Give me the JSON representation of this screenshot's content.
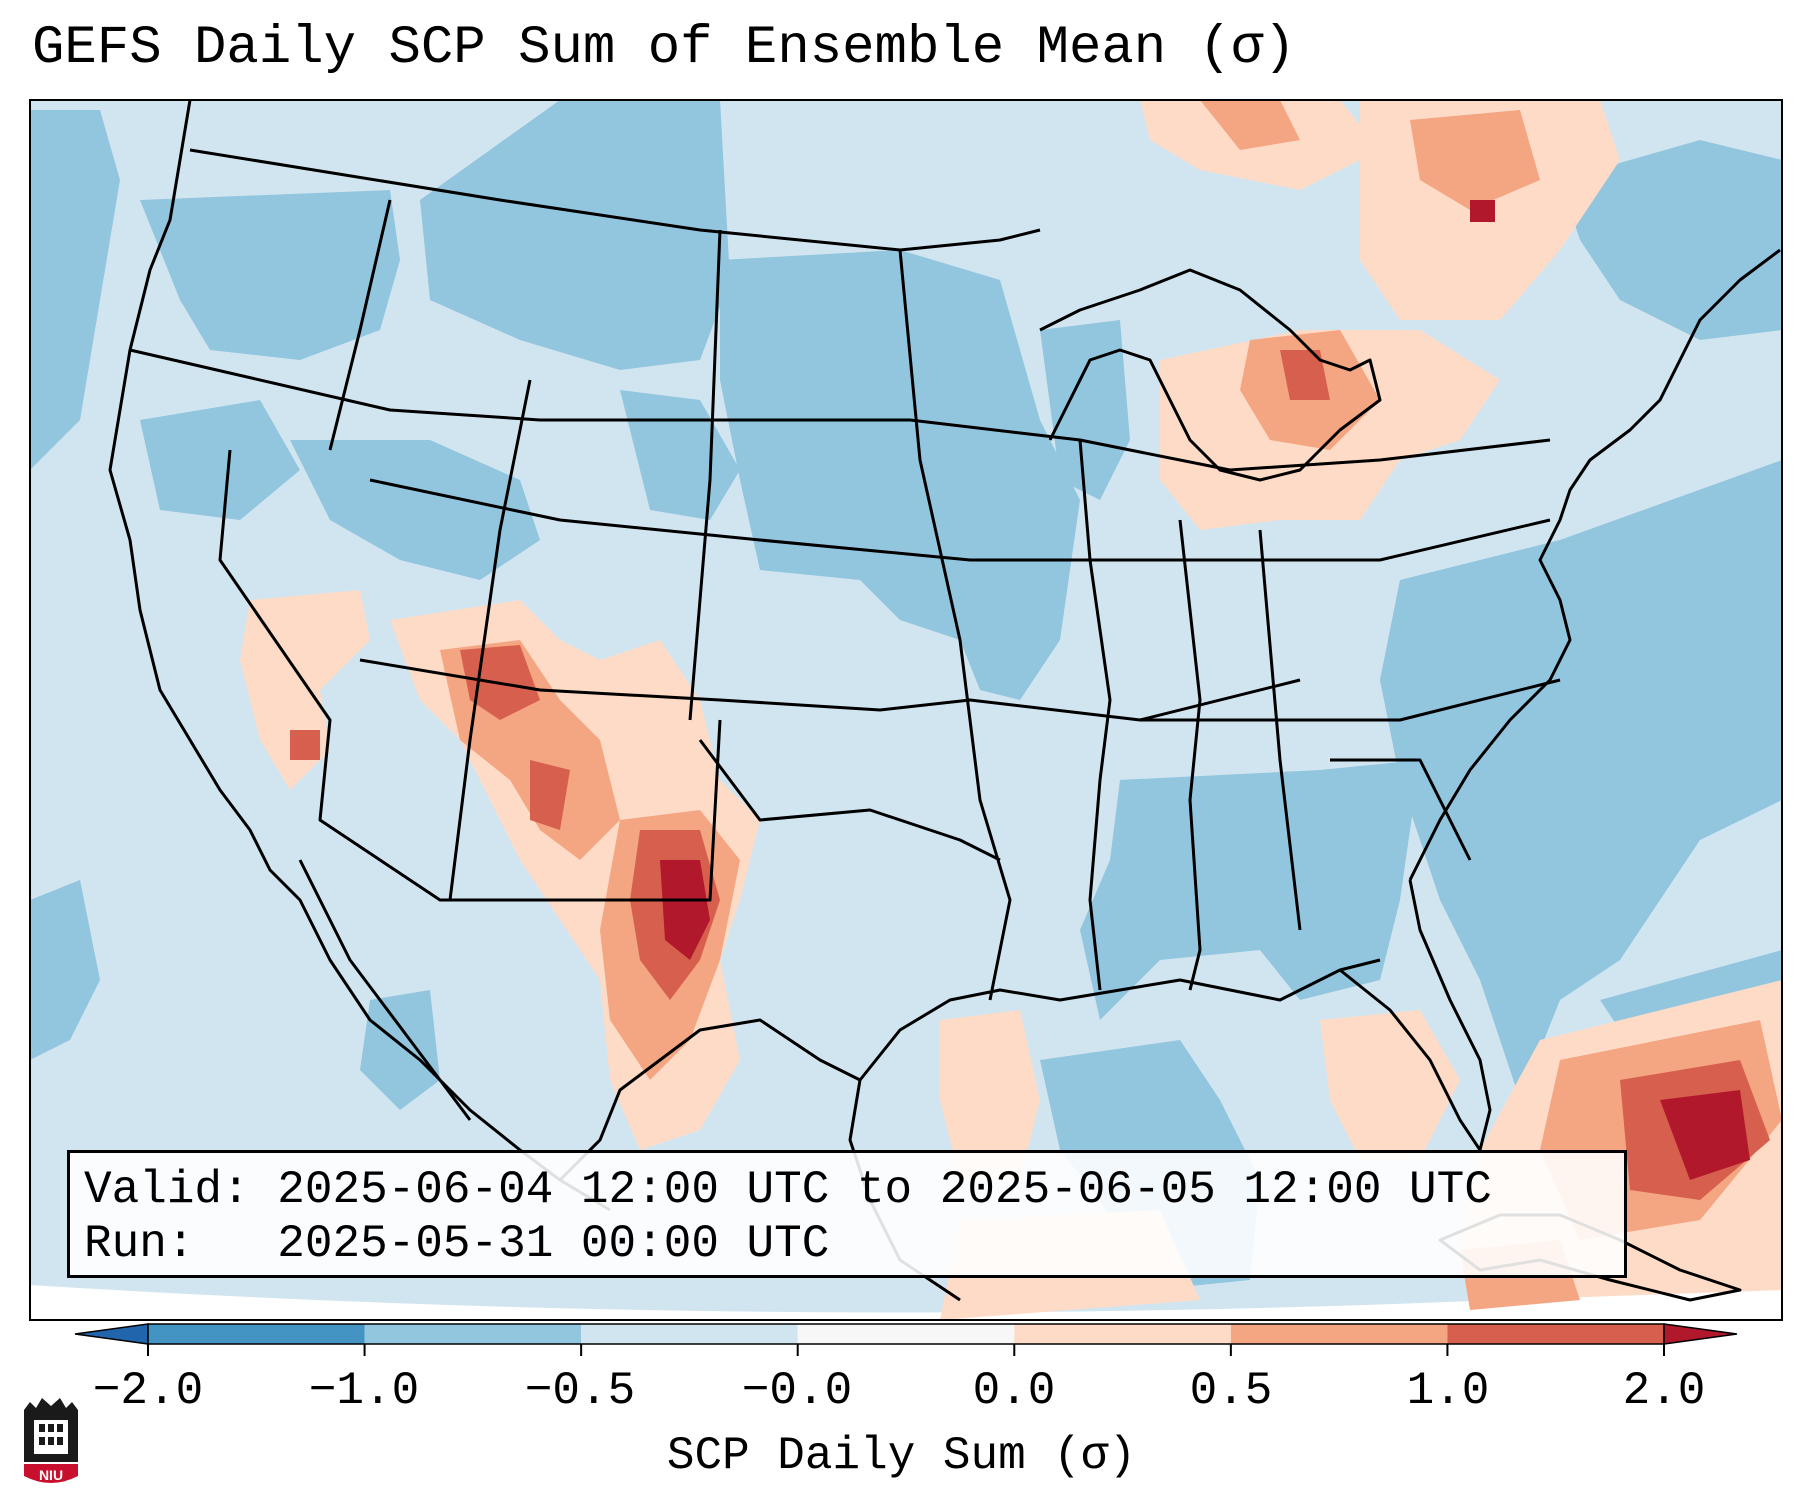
{
  "title": "GEFS Daily SCP Sum of Ensemble Mean (σ)",
  "info": {
    "valid_label": "Valid:",
    "valid_value": "2025-06-04 12:00 UTC to 2025-06-05 12:00 UTC",
    "run_label": "Run:",
    "run_value": "2025-05-31 00:00 UTC"
  },
  "colorbar": {
    "label": "SCP Daily Sum (σ)",
    "ticks": [
      "−2.0",
      "−1.0",
      "−0.5",
      "−0.0",
      "0.0",
      "0.5",
      "1.0",
      "2.0"
    ],
    "bin_colors": [
      "#4393c3",
      "#92c5de",
      "#d1e5f0",
      "#f7f7f7",
      "#fddbc7",
      "#f4a582",
      "#d6604d"
    ],
    "under_color": "#2166ac",
    "over_color": "#b2182b"
  },
  "colors": {
    "neg_strong": "#92c5de",
    "neg_weak": "#d1e5f0",
    "pos_weak": "#fddbc7",
    "pos_mid": "#f4a582",
    "pos_strong": "#d6604d",
    "pos_max": "#b2182b"
  },
  "logo": {
    "text": "NIU",
    "icon": "university-shield-icon"
  }
}
